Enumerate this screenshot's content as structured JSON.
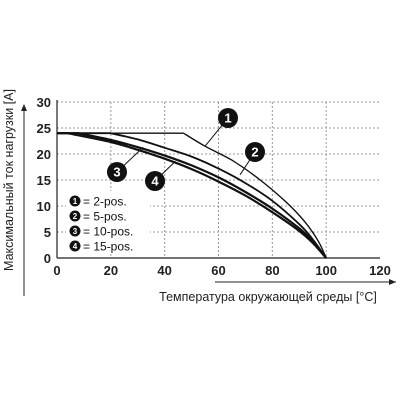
{
  "chart_data": {
    "type": "line",
    "title": "",
    "xlabel": "Температура окружающей среды [°C]",
    "ylabel": "Максимальный ток нагрузки [A]",
    "xlim": [
      0,
      120
    ],
    "ylim": [
      0,
      30
    ],
    "xticks": [
      "0",
      "20",
      "40",
      "60",
      "80",
      "100",
      "120"
    ],
    "yticks": [
      "0",
      "5",
      "10",
      "15",
      "20",
      "25",
      "30"
    ],
    "grid": true,
    "legend_position": "left-center",
    "series": [
      {
        "name": "2-pos.",
        "marker_label": "1",
        "color": "#111111",
        "x": [
          0,
          47,
          55,
          65,
          75,
          85,
          92,
          97,
          100
        ],
        "y": [
          24,
          24,
          21.5,
          18.8,
          15.2,
          10.8,
          7,
          3.3,
          0
        ]
      },
      {
        "name": "5-pos.",
        "marker_label": "2",
        "color": "#111111",
        "x": [
          0,
          20,
          30,
          40,
          50,
          60,
          70,
          80,
          90,
          95,
          100
        ],
        "y": [
          24,
          24,
          22.8,
          21.2,
          19.5,
          17.2,
          14.4,
          11,
          6.5,
          3.6,
          0
        ]
      },
      {
        "name": "10-pos.",
        "marker_label": "3",
        "color": "#111111",
        "x": [
          0,
          8,
          20,
          30,
          40,
          50,
          60,
          70,
          80,
          90,
          95,
          100
        ],
        "y": [
          24,
          24,
          22.7,
          21.3,
          19.7,
          17.8,
          15.5,
          12.7,
          9.5,
          5.7,
          3.2,
          0
        ]
      },
      {
        "name": "15-pos.",
        "marker_label": "4",
        "color": "#111111",
        "x": [
          0,
          4,
          20,
          30,
          40,
          50,
          60,
          70,
          80,
          90,
          95,
          100
        ],
        "y": [
          24,
          24,
          22.3,
          20.8,
          19.1,
          17.1,
          14.7,
          12,
          8.8,
          5.2,
          2.9,
          0
        ]
      }
    ]
  }
}
